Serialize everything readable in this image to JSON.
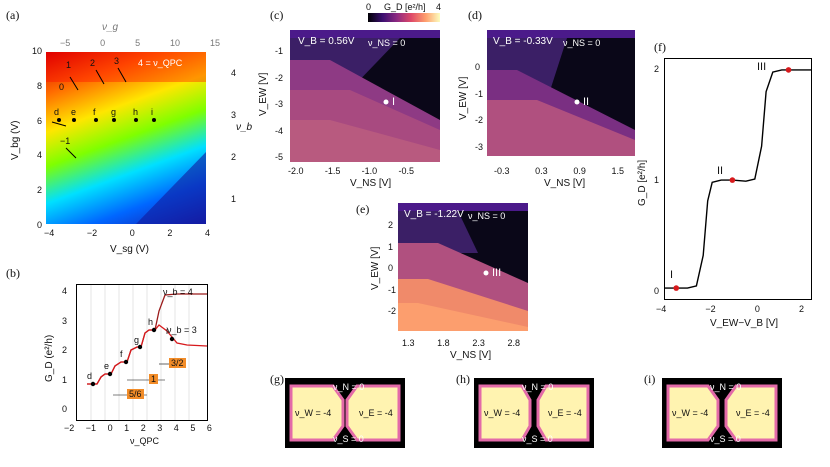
{
  "labels": {
    "a": "(a)",
    "b": "(b)",
    "c": "(c)",
    "d": "(d)",
    "e": "(e)",
    "f": "(f)",
    "g": "(g)",
    "h": "(h)",
    "i": "(i)"
  },
  "panel_a": {
    "top_axis_label": "ν_g",
    "right_axis_label": "ν_b",
    "xlabel": "V_sg (V)",
    "ylabel": "V_bg (V)",
    "x_ticks": [
      "−4",
      "−2",
      "0",
      "2",
      "4"
    ],
    "y_ticks": [
      "0",
      "2",
      "4",
      "6",
      "8",
      "10"
    ],
    "top_ticks": [
      "−5",
      "0",
      "5",
      "10",
      "15"
    ],
    "right_ticks": [
      "1",
      "2",
      "3",
      "4"
    ],
    "annotations": [
      "0",
      "1",
      "2",
      "3",
      "4 = ν_QPC",
      "−1",
      "d",
      "e",
      "f",
      "g",
      "h",
      "i"
    ]
  },
  "panel_b": {
    "xlabel": "ν_QPC",
    "ylabel": "G_D (e²/h)",
    "x_ticks": [
      "−2",
      "−1",
      "0",
      "1",
      "2",
      "3",
      "4",
      "5",
      "6"
    ],
    "y_ticks": [
      "0",
      "1",
      "2",
      "3",
      "4"
    ],
    "curve_labels": [
      "ν_b = 4",
      "ν_b = 3"
    ],
    "point_labels": [
      "d",
      "e",
      "f",
      "g",
      "h",
      "i"
    ],
    "boxes": [
      "5/6",
      "1",
      "3/2"
    ]
  },
  "colorbar": {
    "label": "G_D [e²/h]",
    "min": "0",
    "max": "4"
  },
  "panel_c": {
    "vb": "V_B = 0.56V",
    "vns": "ν_NS = 0",
    "marker": "I",
    "xlabel": "V_NS [V]",
    "ylabel": "V_EW [V]",
    "x_ticks": [
      "-2.0",
      "-1.5",
      "-1.0",
      "-0.5"
    ],
    "y_ticks": [
      "-1",
      "-2",
      "-3",
      "-4",
      "-5"
    ]
  },
  "panel_d": {
    "vb": "V_B = -0.33V",
    "vns": "ν_NS = 0",
    "marker": "II",
    "xlabel": "V_NS [V]",
    "ylabel": "V_EW [V]",
    "x_ticks": [
      "-0.3",
      "0.3",
      "0.9",
      "1.5"
    ],
    "y_ticks": [
      "0",
      "-1",
      "-2",
      "-3"
    ]
  },
  "panel_e": {
    "vb": "V_B = -1.22V",
    "vns": "ν_NS = 0",
    "marker": "III",
    "xlabel": "V_NS [V]",
    "ylabel": "V_EW [V]",
    "x_ticks": [
      "1.3",
      "1.8",
      "2.3",
      "2.8"
    ],
    "y_ticks": [
      "2",
      "1",
      "0",
      "-1",
      "-2"
    ]
  },
  "panel_f": {
    "xlabel": "V_EW−V_B [V]",
    "ylabel": "G_D [e²/h]",
    "x_ticks": [
      "−4",
      "−2",
      "0",
      "2"
    ],
    "y_ticks": [
      "0",
      "1",
      "2"
    ],
    "markers": [
      "I",
      "II",
      "III"
    ]
  },
  "chart_data": {
    "type": "line",
    "title": "",
    "xlabel": "V_EW−V_B [V]",
    "ylabel": "G_D [e²/h]",
    "xlim": [
      -4,
      2.5
    ],
    "ylim": [
      -0.1,
      2.1
    ],
    "x": [
      -4,
      -3.0,
      -2.6,
      -2.3,
      -2.1,
      -1.9,
      -1.5,
      -1.0,
      -0.4,
      0.0,
      0.3,
      0.5,
      0.8,
      1.2,
      1.6,
      2.0,
      2.5
    ],
    "series": [
      {
        "name": "G_D",
        "values": [
          0,
          0,
          0.02,
          0.3,
          0.8,
          0.97,
          0.99,
          0.99,
          0.98,
          1.0,
          1.3,
          1.8,
          1.98,
          2.0,
          2.0,
          2.0,
          2.0
        ]
      }
    ],
    "points": [
      {
        "label": "I",
        "x": -3.5,
        "y": 0
      },
      {
        "label": "II",
        "x": -1.0,
        "y": 0.99
      },
      {
        "label": "III",
        "x": 1.5,
        "y": 2.0
      }
    ]
  },
  "panels_ghi": [
    {
      "label": "(g)",
      "n": "ν_N = 0",
      "w": "ν_W = -4",
      "e": "ν_E = -4",
      "s": "ν_S = 0"
    },
    {
      "label": "(h)",
      "n": "ν_N = 0",
      "w": "ν_W = -4",
      "e": "ν_E = -4",
      "s": "ν_S = 0"
    },
    {
      "label": "(i)",
      "n": "ν_N = 0",
      "w": "ν_W = -4",
      "e": "ν_E = -4",
      "s": "ν_S = 0"
    }
  ],
  "colors": {
    "red": "#d7191c",
    "accent": "#f28c28"
  }
}
